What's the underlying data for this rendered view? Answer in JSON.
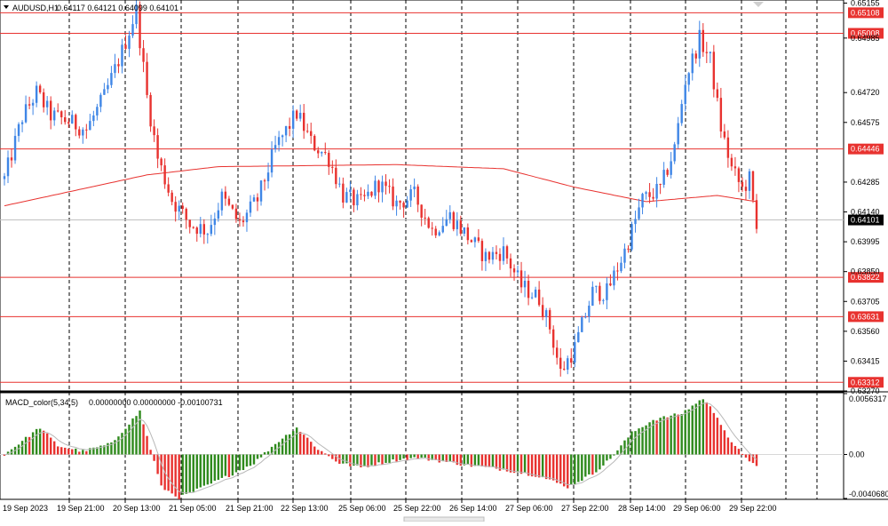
{
  "header": {
    "title": "AUDUSD,H1",
    "ohlc": "0.64117 0.64121 0.64099 0.64101"
  },
  "macd_header": {
    "title": "MACD_color(5,34,5)",
    "values": "0.00000000 0.00000000 -0.00100731"
  },
  "colors": {
    "bull": "#3f86e6",
    "bear": "#e8322f",
    "level_line": "#e8322f",
    "ma_line": "#e8322f",
    "macd_pos": "#2f8a1d",
    "macd_neg": "#e8322f",
    "macd_signal": "#b8b8b8",
    "current_price_bg": "#000000"
  },
  "price_axis": {
    "ticks": [
      "0.65155",
      "0.64985",
      "0.64720",
      "0.64575",
      "0.64285",
      "0.64140",
      "0.63995",
      "0.63850",
      "0.63705",
      "0.63560",
      "0.63415",
      "0.63270"
    ],
    "current_price": "0.64101"
  },
  "levels": [
    {
      "label": "0.65108",
      "value": 0.65108
    },
    {
      "label": "0.65008",
      "value": 0.65008
    },
    {
      "label": "0.64446",
      "value": 0.64446
    },
    {
      "label": "0.63822",
      "value": 0.63822
    },
    {
      "label": "0.63631",
      "value": 0.63631
    },
    {
      "label": "0.63312",
      "value": 0.63312
    }
  ],
  "macd_axis": {
    "ticks": [
      "0.0056317",
      "0.00",
      "-0.0040680"
    ]
  },
  "time_axis": {
    "labels": [
      "19 Sep 2023",
      "19 Sep 21:00",
      "20 Sep 13:00",
      "21 Sep 05:00",
      "21 Sep 21:00",
      "22 Sep 13:00",
      "25 Sep 06:00",
      "25 Sep 22:00",
      "26 Sep 14:00",
      "27 Sep 06:00",
      "27 Sep 22:00",
      "28 Sep 14:00",
      "29 Sep 06:00",
      "29 Sep 22:00"
    ]
  },
  "chart_data": {
    "type": "candlestick",
    "symbol": "AUDUSD",
    "timeframe": "H1",
    "ylim": [
      0.6327,
      0.6517
    ],
    "anchors": [
      {
        "i": 0,
        "p": 0.643
      },
      {
        "i": 5,
        "p": 0.646
      },
      {
        "i": 9,
        "p": 0.6472
      },
      {
        "i": 13,
        "p": 0.6461
      },
      {
        "i": 18,
        "p": 0.6458
      },
      {
        "i": 23,
        "p": 0.6454
      },
      {
        "i": 28,
        "p": 0.647
      },
      {
        "i": 33,
        "p": 0.6492
      },
      {
        "i": 37,
        "p": 0.6512
      },
      {
        "i": 40,
        "p": 0.647
      },
      {
        "i": 43,
        "p": 0.644
      },
      {
        "i": 47,
        "p": 0.642
      },
      {
        "i": 52,
        "p": 0.6408
      },
      {
        "i": 57,
        "p": 0.6405
      },
      {
        "i": 61,
        "p": 0.6421
      },
      {
        "i": 66,
        "p": 0.6408
      },
      {
        "i": 71,
        "p": 0.642
      },
      {
        "i": 76,
        "p": 0.6445
      },
      {
        "i": 82,
        "p": 0.6462
      },
      {
        "i": 86,
        "p": 0.6448
      },
      {
        "i": 91,
        "p": 0.644
      },
      {
        "i": 95,
        "p": 0.6422
      },
      {
        "i": 100,
        "p": 0.6418
      },
      {
        "i": 105,
        "p": 0.6428
      },
      {
        "i": 110,
        "p": 0.6418
      },
      {
        "i": 115,
        "p": 0.6422
      },
      {
        "i": 120,
        "p": 0.6405
      },
      {
        "i": 125,
        "p": 0.6412
      },
      {
        "i": 130,
        "p": 0.6402
      },
      {
        "i": 135,
        "p": 0.6392
      },
      {
        "i": 140,
        "p": 0.6395
      },
      {
        "i": 145,
        "p": 0.6378
      },
      {
        "i": 150,
        "p": 0.6372
      },
      {
        "i": 153,
        "p": 0.6358
      },
      {
        "i": 156,
        "p": 0.6336
      },
      {
        "i": 160,
        "p": 0.6348
      },
      {
        "i": 165,
        "p": 0.6375
      },
      {
        "i": 169,
        "p": 0.6375
      },
      {
        "i": 174,
        "p": 0.6395
      },
      {
        "i": 179,
        "p": 0.642
      },
      {
        "i": 184,
        "p": 0.6425
      },
      {
        "i": 188,
        "p": 0.6445
      },
      {
        "i": 191,
        "p": 0.6478
      },
      {
        "i": 195,
        "p": 0.6498
      },
      {
        "i": 198,
        "p": 0.6488
      },
      {
        "i": 201,
        "p": 0.6455
      },
      {
        "i": 204,
        "p": 0.6435
      },
      {
        "i": 207,
        "p": 0.6425
      },
      {
        "i": 209,
        "p": 0.643
      },
      {
        "i": 211,
        "p": 0.6405
      }
    ],
    "ma_anchors": [
      {
        "i": 0,
        "p": 0.6417
      },
      {
        "i": 40,
        "p": 0.6432
      },
      {
        "i": 60,
        "p": 0.6436
      },
      {
        "i": 110,
        "p": 0.6437
      },
      {
        "i": 140,
        "p": 0.6435
      },
      {
        "i": 160,
        "p": 0.6426
      },
      {
        "i": 180,
        "p": 0.6419
      },
      {
        "i": 200,
        "p": 0.6422
      },
      {
        "i": 211,
        "p": 0.6419
      }
    ],
    "macd_anchors": [
      {
        "i": 0,
        "v": 0.0
      },
      {
        "i": 10,
        "v": 0.0025
      },
      {
        "i": 15,
        "v": 0.0008
      },
      {
        "i": 22,
        "v": 0.0003
      },
      {
        "i": 30,
        "v": 0.001
      },
      {
        "i": 38,
        "v": 0.004
      },
      {
        "i": 41,
        "v": 0.0005
      },
      {
        "i": 44,
        "v": -0.003
      },
      {
        "i": 49,
        "v": -0.004
      },
      {
        "i": 56,
        "v": -0.003
      },
      {
        "i": 64,
        "v": -0.0018
      },
      {
        "i": 70,
        "v": -0.0008
      },
      {
        "i": 76,
        "v": 0.001
      },
      {
        "i": 82,
        "v": 0.0025
      },
      {
        "i": 88,
        "v": 0.0005
      },
      {
        "i": 94,
        "v": -0.0008
      },
      {
        "i": 100,
        "v": -0.0012
      },
      {
        "i": 110,
        "v": -0.0005
      },
      {
        "i": 116,
        "v": -0.0003
      },
      {
        "i": 122,
        "v": -0.0006
      },
      {
        "i": 130,
        "v": -0.001
      },
      {
        "i": 140,
        "v": -0.0014
      },
      {
        "i": 150,
        "v": -0.002
      },
      {
        "i": 158,
        "v": -0.003
      },
      {
        "i": 165,
        "v": -0.0018
      },
      {
        "i": 170,
        "v": -0.0004
      },
      {
        "i": 176,
        "v": 0.002
      },
      {
        "i": 182,
        "v": 0.0032
      },
      {
        "i": 190,
        "v": 0.0038
      },
      {
        "i": 196,
        "v": 0.0052
      },
      {
        "i": 200,
        "v": 0.0035
      },
      {
        "i": 204,
        "v": 0.001
      },
      {
        "i": 208,
        "v": -0.0002
      },
      {
        "i": 211,
        "v": -0.0012
      }
    ],
    "macd_ylim": [
      -0.004068,
      0.0056317
    ],
    "bar_count": 212
  }
}
